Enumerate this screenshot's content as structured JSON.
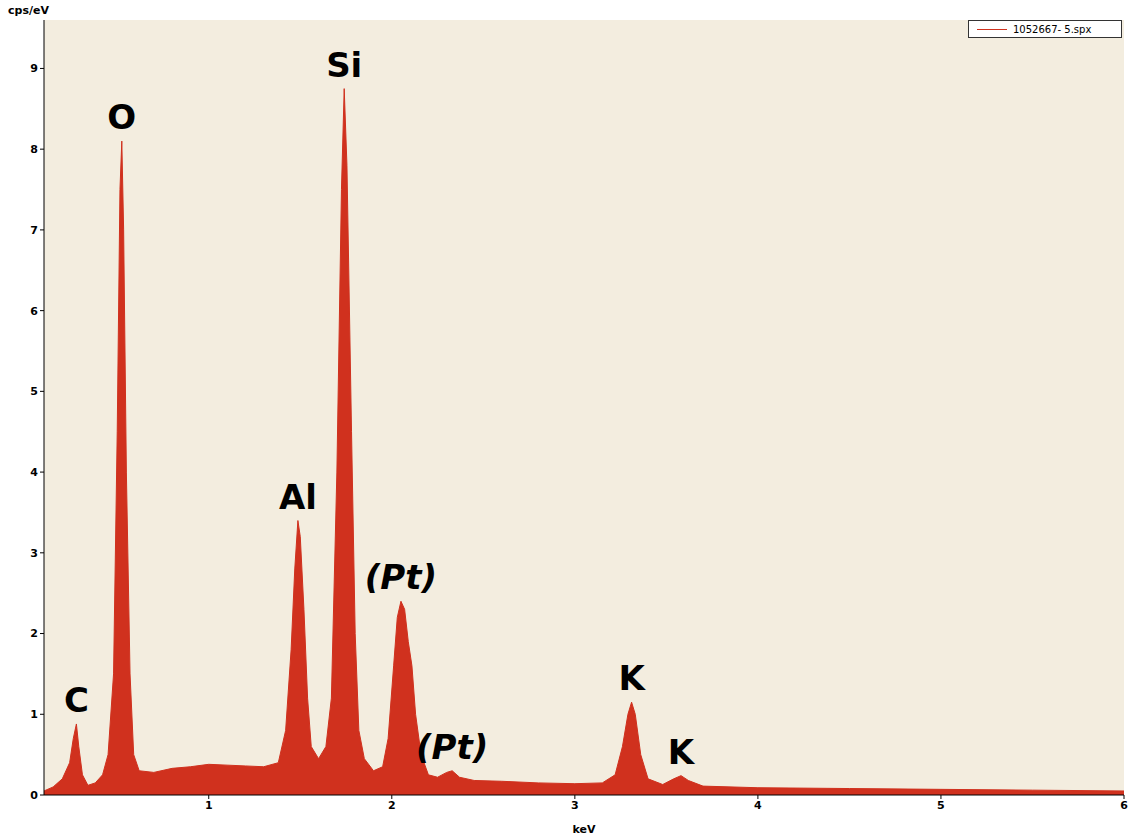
{
  "chart_data": {
    "type": "area",
    "x_label": "keV",
    "y_label": "cps/eV",
    "xlim": [
      0.1,
      6
    ],
    "xticks": [
      1,
      2,
      3,
      4,
      5,
      6
    ],
    "ylim": [
      0,
      9.6
    ],
    "yticks": [
      0,
      1,
      2,
      3,
      4,
      5,
      6,
      7,
      8,
      9
    ],
    "grid": false,
    "legend": "upper right",
    "series": [
      {
        "name": "1052667- 5.spx",
        "color": "#d0311e",
        "x": [
          0.1,
          0.15,
          0.2,
          0.24,
          0.26,
          0.277,
          0.29,
          0.31,
          0.34,
          0.38,
          0.42,
          0.45,
          0.48,
          0.5,
          0.515,
          0.525,
          0.535,
          0.55,
          0.57,
          0.59,
          0.62,
          0.7,
          0.8,
          0.9,
          1.0,
          1.1,
          1.2,
          1.3,
          1.38,
          1.42,
          1.45,
          1.47,
          1.487,
          1.5,
          1.52,
          1.54,
          1.56,
          1.6,
          1.64,
          1.67,
          1.7,
          1.725,
          1.74,
          1.755,
          1.78,
          1.8,
          1.82,
          1.85,
          1.9,
          1.95,
          1.98,
          2.01,
          2.03,
          2.05,
          2.07,
          2.09,
          2.11,
          2.13,
          2.16,
          2.2,
          2.25,
          2.3,
          2.33,
          2.37,
          2.45,
          2.6,
          2.8,
          3.0,
          3.15,
          3.22,
          3.26,
          3.29,
          3.31,
          3.33,
          3.36,
          3.4,
          3.48,
          3.54,
          3.58,
          3.62,
          3.7,
          4.0,
          4.5,
          5.0,
          5.5,
          6.0
        ],
        "values": [
          0.05,
          0.1,
          0.2,
          0.4,
          0.7,
          0.88,
          0.6,
          0.25,
          0.12,
          0.15,
          0.25,
          0.5,
          1.5,
          4.5,
          7.5,
          8.1,
          7.0,
          4.0,
          1.5,
          0.5,
          0.3,
          0.28,
          0.33,
          0.35,
          0.38,
          0.37,
          0.36,
          0.35,
          0.4,
          0.8,
          1.8,
          2.8,
          3.4,
          3.2,
          2.3,
          1.2,
          0.6,
          0.45,
          0.6,
          1.2,
          4.0,
          7.5,
          8.75,
          7.8,
          4.5,
          2.0,
          0.8,
          0.45,
          0.3,
          0.35,
          0.7,
          1.6,
          2.2,
          2.4,
          2.3,
          1.9,
          1.6,
          1.0,
          0.5,
          0.25,
          0.22,
          0.28,
          0.3,
          0.22,
          0.18,
          0.17,
          0.15,
          0.14,
          0.15,
          0.25,
          0.6,
          1.0,
          1.15,
          1.0,
          0.5,
          0.2,
          0.13,
          0.2,
          0.24,
          0.18,
          0.11,
          0.09,
          0.08,
          0.07,
          0.06,
          0.05
        ]
      }
    ],
    "annotations": [
      {
        "text": "C",
        "x": 0.277
      },
      {
        "text": "O",
        "x": 0.525
      },
      {
        "text": "Al",
        "x": 1.487
      },
      {
        "text": "Si",
        "x": 1.74
      },
      {
        "text": "(Pt)",
        "x": 2.05
      },
      {
        "text": "(Pt)",
        "x": 2.33
      },
      {
        "text": "K",
        "x": 3.31
      },
      {
        "text": "K",
        "x": 3.58
      }
    ]
  }
}
